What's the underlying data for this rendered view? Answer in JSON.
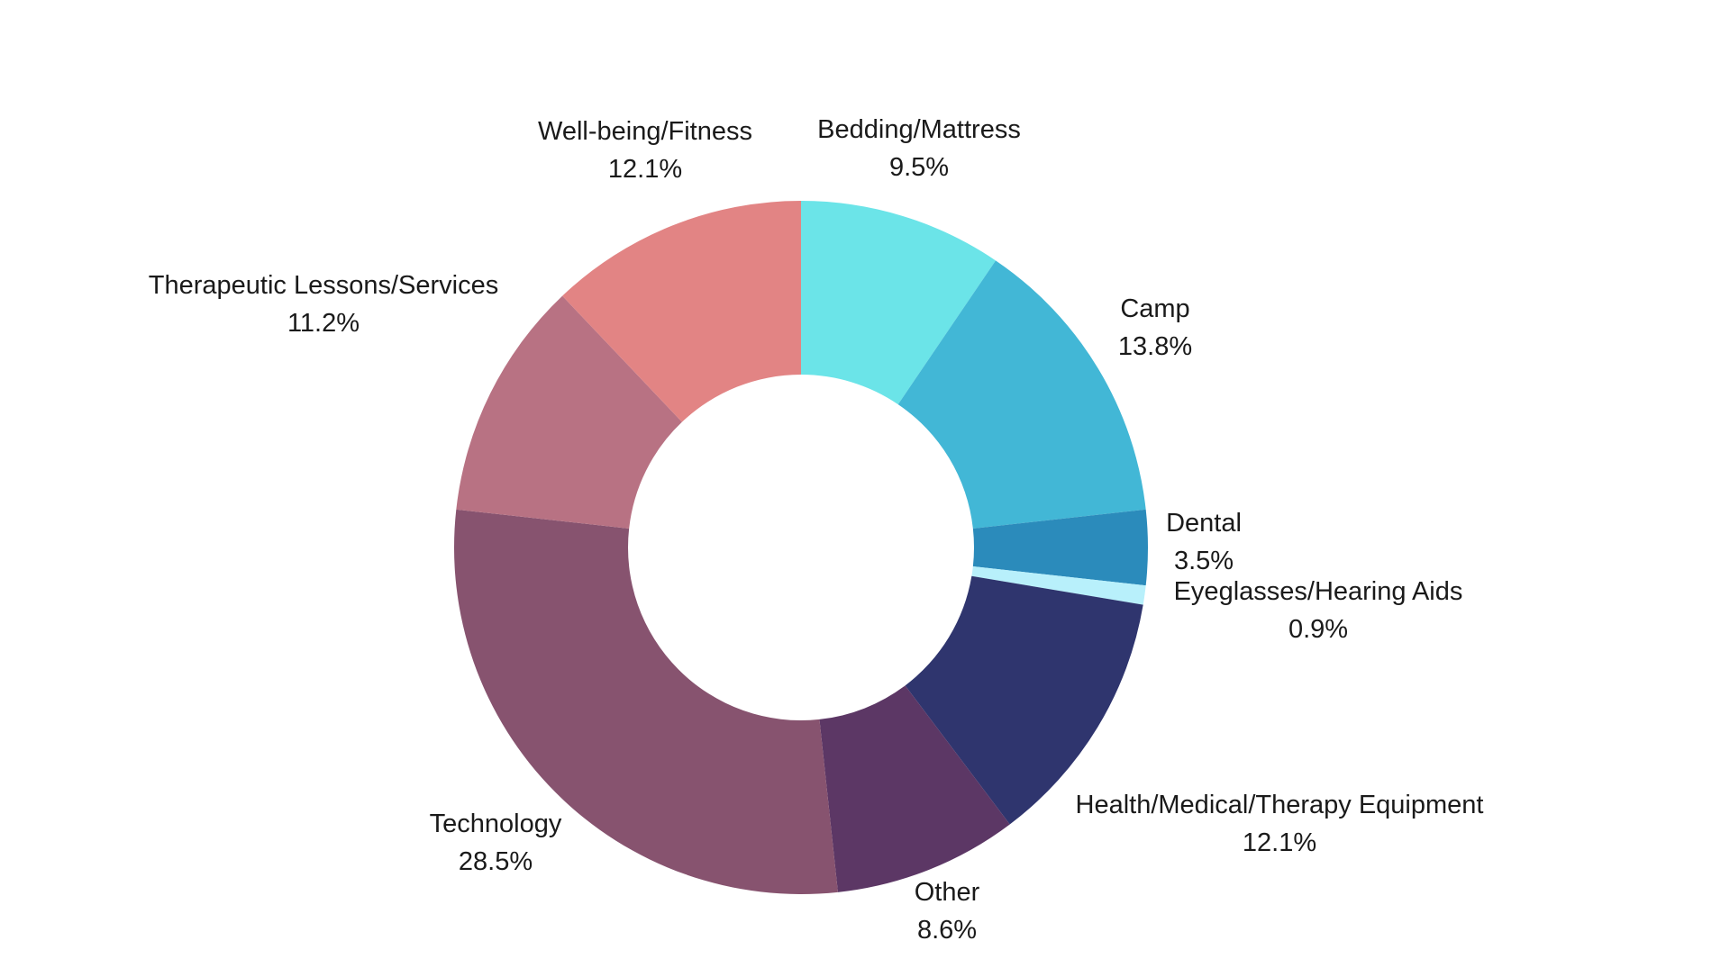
{
  "chart_data": {
    "type": "pie",
    "variant": "donut",
    "title": "",
    "legend": "none",
    "unit": "%",
    "slices": [
      {
        "label": "Bedding/Mattress",
        "value": 9.5,
        "display": "9.5%",
        "color": "#6be4e8"
      },
      {
        "label": "Camp",
        "value": 13.8,
        "display": "13.8%",
        "color": "#42b7d6"
      },
      {
        "label": "Dental",
        "value": 3.5,
        "display": "3.5%",
        "color": "#2b8bbb"
      },
      {
        "label": "Eyeglasses/Hearing Aids",
        "value": 0.9,
        "display": "0.9%",
        "color": "#b8f0fb"
      },
      {
        "label": "Health/Medical/Therapy Equipment",
        "value": 12.1,
        "display": "12.1%",
        "color": "#2f356e"
      },
      {
        "label": "Other",
        "value": 8.6,
        "display": "8.6%",
        "color": "#5c3765"
      },
      {
        "label": "Technology",
        "value": 28.5,
        "display": "28.5%",
        "color": "#87536f"
      },
      {
        "label": "Therapeutic Lessons/Services",
        "value": 11.2,
        "display": "11.2%",
        "color": "#b87283"
      },
      {
        "label": "Well-being/Fitness",
        "value": 12.1,
        "display": "12.1%",
        "color": "#e28484"
      }
    ]
  }
}
